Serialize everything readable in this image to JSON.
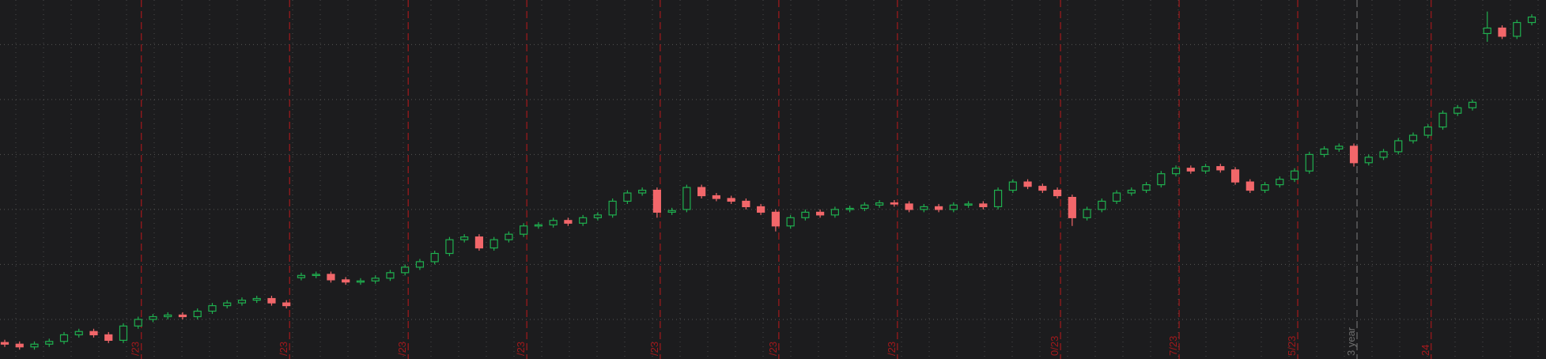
{
  "chart_data": {
    "type": "candlestick",
    "open": [
      0.58,
      0.55,
      0.5,
      0.55,
      0.6,
      0.72,
      0.78,
      0.72,
      0.62,
      0.88,
      1.0,
      1.05,
      1.08,
      1.05,
      1.15,
      1.25,
      1.3,
      1.35,
      1.38,
      1.3,
      1.76,
      1.8,
      1.82,
      1.72,
      1.68,
      1.7,
      1.75,
      1.85,
      1.95,
      2.05,
      2.2,
      2.45,
      2.5,
      2.3,
      2.45,
      2.55,
      2.7,
      2.72,
      2.8,
      2.75,
      2.85,
      2.9,
      3.15,
      3.3,
      3.35,
      2.95,
      3.0,
      3.4,
      3.25,
      3.2,
      3.15,
      3.05,
      2.95,
      2.7,
      2.85,
      2.95,
      2.9,
      3.0,
      3.02,
      3.08,
      3.12,
      3.1,
      3.0,
      3.05,
      3.0,
      3.08,
      3.1,
      3.05,
      3.35,
      3.5,
      3.42,
      3.35,
      3.22,
      2.85,
      3.0,
      3.15,
      3.3,
      3.35,
      3.45,
      3.65,
      3.75,
      3.7,
      3.78,
      3.72,
      3.5,
      3.35,
      3.45,
      3.55,
      3.7,
      4.0,
      4.1,
      4.15,
      3.85,
      3.95,
      4.05,
      4.25,
      4.35,
      4.5,
      4.75,
      4.85,
      6.2,
      6.3,
      6.15,
      6.4
    ],
    "high": [
      0.63,
      0.6,
      0.6,
      0.65,
      0.77,
      0.83,
      0.83,
      0.77,
      0.93,
      1.05,
      1.1,
      1.13,
      1.13,
      1.2,
      1.3,
      1.35,
      1.4,
      1.43,
      1.43,
      1.35,
      1.85,
      1.87,
      1.87,
      1.77,
      1.75,
      1.8,
      1.9,
      2.0,
      2.1,
      2.25,
      2.5,
      2.55,
      2.55,
      2.5,
      2.6,
      2.75,
      2.77,
      2.85,
      2.85,
      2.9,
      2.95,
      3.2,
      3.35,
      3.4,
      3.4,
      3.03,
      3.45,
      3.45,
      3.3,
      3.25,
      3.2,
      3.1,
      3.0,
      2.9,
      3.0,
      3.0,
      3.05,
      3.07,
      3.13,
      3.17,
      3.17,
      3.15,
      3.1,
      3.1,
      3.13,
      3.15,
      3.15,
      3.4,
      3.55,
      3.55,
      3.47,
      3.4,
      3.27,
      3.05,
      3.2,
      3.35,
      3.4,
      3.5,
      3.7,
      3.8,
      3.8,
      3.83,
      3.83,
      3.77,
      3.55,
      3.5,
      3.6,
      3.75,
      4.05,
      4.15,
      4.2,
      4.2,
      4.0,
      4.1,
      4.3,
      4.4,
      4.55,
      4.8,
      4.9,
      5.0,
      6.6,
      6.35,
      6.45,
      6.55
    ],
    "low": [
      0.5,
      0.45,
      0.45,
      0.5,
      0.55,
      0.67,
      0.67,
      0.57,
      0.57,
      0.83,
      0.95,
      1.0,
      1.0,
      1.0,
      1.1,
      1.2,
      1.25,
      1.3,
      1.25,
      1.2,
      1.71,
      1.75,
      1.67,
      1.63,
      1.63,
      1.65,
      1.7,
      1.8,
      1.9,
      2.0,
      2.15,
      2.4,
      2.25,
      2.25,
      2.4,
      2.5,
      2.65,
      2.67,
      2.7,
      2.7,
      2.8,
      2.85,
      3.1,
      3.25,
      2.85,
      2.9,
      2.95,
      3.2,
      3.15,
      3.1,
      3.0,
      2.9,
      2.6,
      2.65,
      2.8,
      2.85,
      2.85,
      2.95,
      2.97,
      3.03,
      3.05,
      2.95,
      2.95,
      2.95,
      2.95,
      3.03,
      3.0,
      3.0,
      3.3,
      3.37,
      3.3,
      3.2,
      2.7,
      2.8,
      2.95,
      3.1,
      3.25,
      3.3,
      3.4,
      3.6,
      3.65,
      3.65,
      3.67,
      3.45,
      3.3,
      3.3,
      3.4,
      3.5,
      3.65,
      3.95,
      4.05,
      3.78,
      3.8,
      3.9,
      4.0,
      4.2,
      4.3,
      4.45,
      4.7,
      4.8,
      6.05,
      6.1,
      6.1,
      6.35
    ],
    "close": [
      0.55,
      0.5,
      0.55,
      0.6,
      0.72,
      0.78,
      0.72,
      0.62,
      0.88,
      1.0,
      1.05,
      1.08,
      1.05,
      1.15,
      1.25,
      1.3,
      1.35,
      1.38,
      1.3,
      1.25,
      1.8,
      1.82,
      1.72,
      1.68,
      1.7,
      1.75,
      1.85,
      1.95,
      2.05,
      2.2,
      2.45,
      2.5,
      2.3,
      2.45,
      2.55,
      2.7,
      2.72,
      2.8,
      2.75,
      2.85,
      2.9,
      3.15,
      3.3,
      3.35,
      2.95,
      2.98,
      3.4,
      3.25,
      3.2,
      3.15,
      3.05,
      2.95,
      2.7,
      2.85,
      2.95,
      2.9,
      3.0,
      3.02,
      3.08,
      3.12,
      3.1,
      3.0,
      3.05,
      3.0,
      3.08,
      3.1,
      3.05,
      3.35,
      3.5,
      3.42,
      3.35,
      3.25,
      2.85,
      3.0,
      3.15,
      3.3,
      3.35,
      3.45,
      3.65,
      3.75,
      3.7,
      3.78,
      3.72,
      3.5,
      3.35,
      3.45,
      3.55,
      3.7,
      4.0,
      4.1,
      4.15,
      3.85,
      3.95,
      4.05,
      4.25,
      4.35,
      4.5,
      4.75,
      4.85,
      4.95,
      6.3,
      6.15,
      6.4,
      6.5
    ],
    "categories": [
      null,
      null,
      null,
      null,
      null,
      null,
      null,
      null,
      null,
      "/23",
      null,
      null,
      null,
      null,
      null,
      null,
      null,
      null,
      null,
      "/23",
      null,
      null,
      null,
      null,
      null,
      null,
      null,
      "/23",
      null,
      null,
      null,
      null,
      null,
      null,
      null,
      "/23",
      null,
      null,
      null,
      null,
      null,
      null,
      null,
      null,
      "/23",
      null,
      null,
      null,
      null,
      null,
      null,
      null,
      "/23",
      null,
      null,
      null,
      null,
      null,
      null,
      null,
      "/23",
      null,
      null,
      null,
      null,
      null,
      null,
      null,
      null,
      null,
      null,
      "0/23",
      null,
      null,
      null,
      null,
      null,
      null,
      null,
      "7/23",
      null,
      null,
      null,
      null,
      null,
      null,
      null,
      "5/23",
      null,
      null,
      null,
      "3 year",
      null,
      null,
      null,
      null,
      "24",
      null,
      null,
      null,
      null,
      null,
      null,
      null
    ],
    "separator_colors": [
      "#a3191c",
      "#a3191c",
      "#a3191c",
      "#a3191c",
      "#a3191c",
      "#a3191c",
      "#a3191c",
      "#a3191c",
      "#a3191c",
      "#a3191c",
      "#6e6e6e",
      "#a3191c"
    ],
    "up_color": "#1fb04f",
    "down_color": "#f2676a",
    "ylim": [
      0.28,
      6.81
    ],
    "yticks": [
      1,
      2,
      3,
      4,
      5,
      6
    ],
    "grid": true
  }
}
